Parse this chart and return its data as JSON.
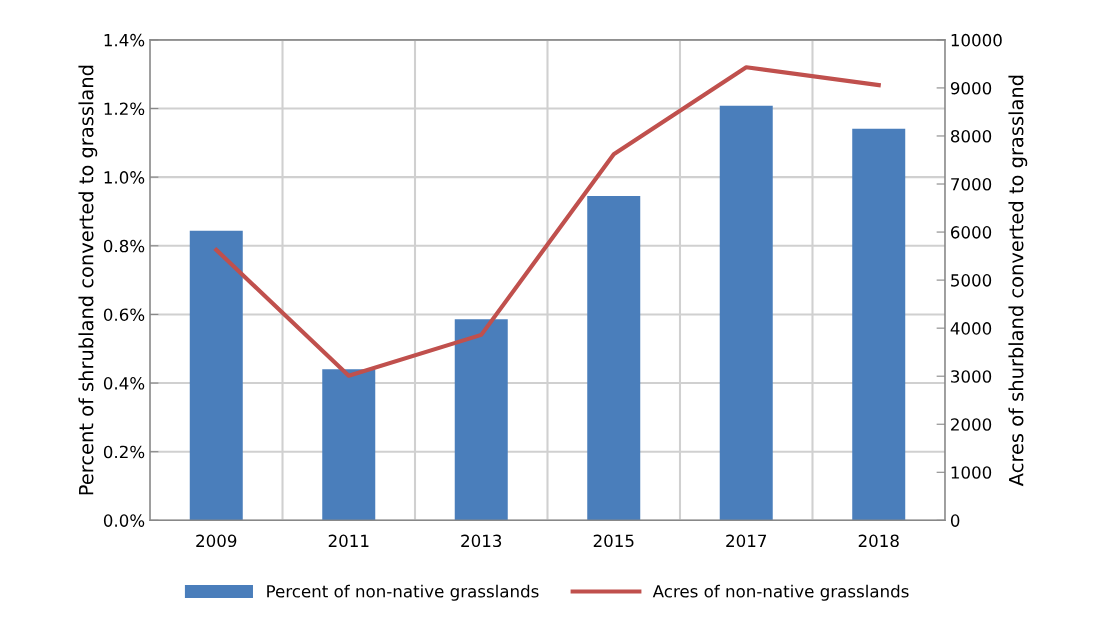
{
  "chart_data": {
    "type": "bar",
    "categories": [
      "2009",
      "2011",
      "2013",
      "2015",
      "2017",
      "2018"
    ],
    "ylabel": "Percent of shrubland converted to grassland",
    "y2label": "Acres of shurbland converted to grassland",
    "series": [
      {
        "name": "Percent of non-native grasslands",
        "color": "#4a7ebb",
        "values": [
          0.844,
          0.44,
          0.586,
          0.945,
          1.208,
          1.141
        ]
      },
      {
        "name": "Acres of non-native grasslands",
        "type": "line",
        "axis": "y2",
        "color": "#c0504d",
        "values": [
          5630,
          3010,
          3860,
          7620,
          9430,
          9060
        ]
      }
    ],
    "ylim": [
      0,
      1.4
    ],
    "yticks": [
      {
        "value": 0,
        "label": "0.0%"
      },
      {
        "value": 0.2,
        "label": "0.2%"
      },
      {
        "value": 0.4,
        "label": "0.4%"
      },
      {
        "value": 0.6,
        "label": "0.6%"
      },
      {
        "value": 0.8,
        "label": "0.8%"
      },
      {
        "value": 1.0,
        "label": "1.0%"
      },
      {
        "value": 1.2,
        "label": "1.2%"
      },
      {
        "value": 1.4,
        "label": "1.4%"
      }
    ],
    "y2lim": [
      0,
      10000
    ],
    "y2ticks": [
      0,
      1000,
      2000,
      3000,
      4000,
      5000,
      6000,
      7000,
      8000,
      9000,
      10000
    ],
    "grid": true,
    "legend": "bottom",
    "marker": "none",
    "line_style": "solid"
  }
}
